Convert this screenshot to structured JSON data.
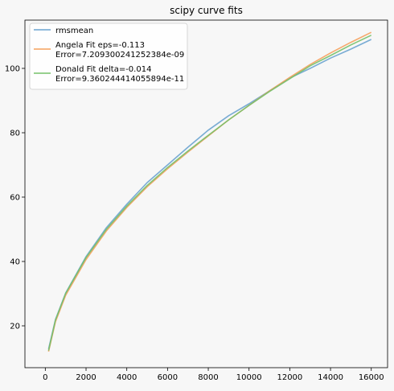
{
  "chart_data": {
    "type": "line",
    "title": "scipy curve fits",
    "xlabel": "",
    "ylabel": "",
    "xlim": [
      -1000,
      16800
    ],
    "ylim": [
      7,
      115
    ],
    "xticks": [
      0,
      2000,
      4000,
      6000,
      8000,
      10000,
      12000,
      14000,
      16000
    ],
    "yticks": [
      20,
      40,
      60,
      80,
      100
    ],
    "grid": false,
    "legend_position": "top-left",
    "series": [
      {
        "name": "rmsmean",
        "color": "#6aa3cf",
        "x": [
          160,
          500,
          1000,
          2000,
          3000,
          4000,
          5000,
          6000,
          7000,
          8000,
          9000,
          10000,
          11000,
          12000,
          13000,
          14000,
          15000,
          16000
        ],
        "y": [
          12.8,
          22.0,
          30.2,
          41.5,
          50.5,
          57.8,
          64.5,
          70.0,
          75.5,
          80.8,
          85.3,
          89.0,
          93.0,
          97.0,
          100.0,
          103.2,
          106.0,
          109.0
        ]
      },
      {
        "name": "Angela Fit eps=-0.113\nError=7.209300241252384e-09",
        "color": "#f5a05c",
        "x": [
          160,
          500,
          1000,
          2000,
          3000,
          4000,
          5000,
          6000,
          7000,
          8000,
          9000,
          10000,
          11000,
          12000,
          13000,
          14000,
          15000,
          16000
        ],
        "y": [
          12.0,
          21.3,
          29.5,
          40.6,
          49.5,
          56.8,
          63.2,
          68.8,
          74.0,
          79.0,
          84.0,
          88.5,
          93.0,
          97.2,
          101.2,
          104.8,
          108.1,
          111.2
        ]
      },
      {
        "name": "Donald Fit delta=-0.014\nError=9.360244414055894e-11",
        "color": "#75c069",
        "x": [
          160,
          500,
          1000,
          2000,
          3000,
          4000,
          5000,
          6000,
          7000,
          8000,
          9000,
          10000,
          11000,
          12000,
          13000,
          14000,
          15000,
          16000
        ],
        "y": [
          12.3,
          21.8,
          30.1,
          41.2,
          50.0,
          57.2,
          63.6,
          69.2,
          74.3,
          79.2,
          84.0,
          88.5,
          92.8,
          96.8,
          100.8,
          104.0,
          107.3,
          110.3
        ]
      }
    ]
  }
}
